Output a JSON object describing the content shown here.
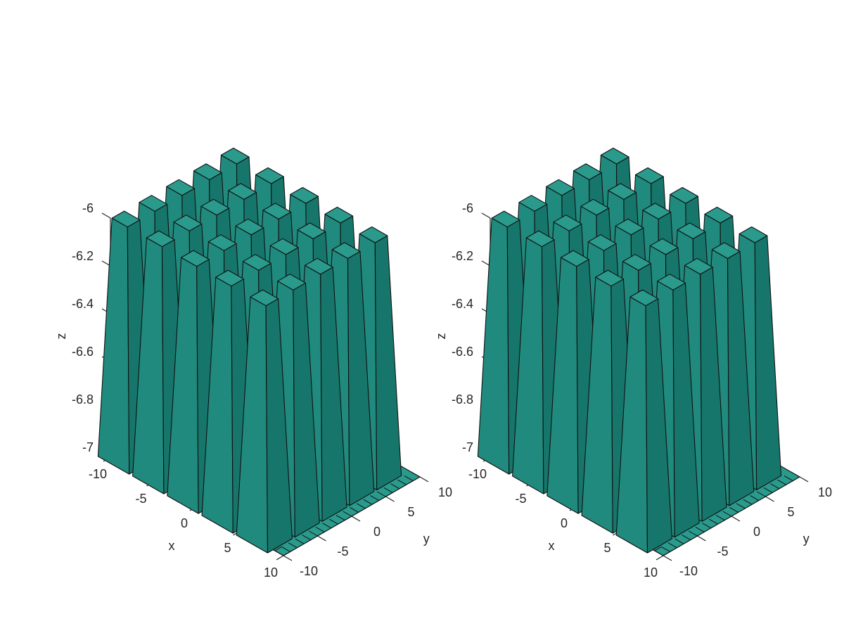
{
  "chart_data": [
    {
      "type": "surface3d",
      "xlabel": "x",
      "ylabel": "y",
      "zlabel": "z",
      "xlim": [
        -10,
        10
      ],
      "ylim": [
        -10,
        10
      ],
      "zlim": [
        -7,
        -6
      ],
      "xticks": [
        "-10",
        "-5",
        "0",
        "5",
        "10"
      ],
      "yticks": [
        "-10",
        "-5",
        "0",
        "5",
        "10"
      ],
      "zticks": [
        "-6",
        "-6.2",
        "-6.4",
        "-6.6",
        "-6.8",
        "-7"
      ],
      "base_z": -7,
      "peak_z": -6,
      "peaks": [
        {
          "x": -9,
          "y": -9
        },
        {
          "x": -9,
          "y": -5
        },
        {
          "x": -9,
          "y": -1
        },
        {
          "x": -9,
          "y": 3
        },
        {
          "x": -9,
          "y": 7
        },
        {
          "x": -5,
          "y": -9
        },
        {
          "x": -5,
          "y": -5
        },
        {
          "x": -5,
          "y": -1
        },
        {
          "x": -5,
          "y": 3
        },
        {
          "x": -5,
          "y": 7
        },
        {
          "x": -1,
          "y": -9
        },
        {
          "x": -1,
          "y": -5
        },
        {
          "x": -1,
          "y": -1
        },
        {
          "x": -1,
          "y": 3
        },
        {
          "x": -1,
          "y": 7
        },
        {
          "x": 3,
          "y": -9
        },
        {
          "x": 3,
          "y": -5
        },
        {
          "x": 3,
          "y": -1
        },
        {
          "x": 3,
          "y": 3
        },
        {
          "x": 3,
          "y": 7
        },
        {
          "x": 7,
          "y": -9
        },
        {
          "x": 7,
          "y": -5
        },
        {
          "x": 7,
          "y": -1
        },
        {
          "x": 7,
          "y": 3
        },
        {
          "x": 7,
          "y": 7
        }
      ]
    },
    {
      "type": "surface3d",
      "xlabel": "x",
      "ylabel": "y",
      "zlabel": "z",
      "xlim": [
        -10,
        10
      ],
      "ylim": [
        -10,
        10
      ],
      "zlim": [
        -7,
        -6
      ],
      "xticks": [
        "-10",
        "-5",
        "0",
        "5",
        "10"
      ],
      "yticks": [
        "-10",
        "-5",
        "0",
        "5",
        "10"
      ],
      "zticks": [
        "-6",
        "-6.2",
        "-6.4",
        "-6.6",
        "-6.8",
        "-7"
      ],
      "base_z": -7,
      "peak_z": -6,
      "peaks": [
        {
          "x": -9,
          "y": -9
        },
        {
          "x": -9,
          "y": -5
        },
        {
          "x": -9,
          "y": -1
        },
        {
          "x": -9,
          "y": 3
        },
        {
          "x": -9,
          "y": 7
        },
        {
          "x": -5,
          "y": -9
        },
        {
          "x": -5,
          "y": -5
        },
        {
          "x": -5,
          "y": -1
        },
        {
          "x": -5,
          "y": 3
        },
        {
          "x": -5,
          "y": 7
        },
        {
          "x": -1,
          "y": -9
        },
        {
          "x": -1,
          "y": -5
        },
        {
          "x": -1,
          "y": -1
        },
        {
          "x": -1,
          "y": 3
        },
        {
          "x": -1,
          "y": 7
        },
        {
          "x": 3,
          "y": -9
        },
        {
          "x": 3,
          "y": -5
        },
        {
          "x": 3,
          "y": -1
        },
        {
          "x": 3,
          "y": 3
        },
        {
          "x": 3,
          "y": 7
        },
        {
          "x": 7,
          "y": -9
        },
        {
          "x": 7,
          "y": -5
        },
        {
          "x": 7,
          "y": -1
        },
        {
          "x": 7,
          "y": 3
        },
        {
          "x": 7,
          "y": 7
        }
      ]
    }
  ],
  "colors": {
    "surface_top": "#2a9a8c",
    "surface_left": "#1f8a7d",
    "surface_right": "#17766b",
    "edge": "#111111",
    "axis": "#262626"
  }
}
